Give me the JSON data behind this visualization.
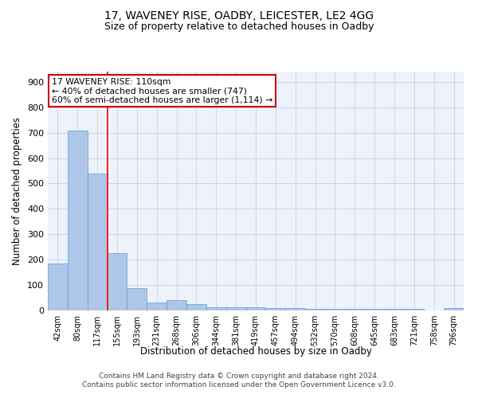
{
  "title1": "17, WAVENEY RISE, OADBY, LEICESTER, LE2 4GG",
  "title2": "Size of property relative to detached houses in Oadby",
  "xlabel": "Distribution of detached houses by size in Oadby",
  "ylabel": "Number of detached properties",
  "categories": [
    "42sqm",
    "80sqm",
    "117sqm",
    "155sqm",
    "193sqm",
    "231sqm",
    "268sqm",
    "306sqm",
    "344sqm",
    "381sqm",
    "419sqm",
    "457sqm",
    "494sqm",
    "532sqm",
    "570sqm",
    "608sqm",
    "645sqm",
    "683sqm",
    "721sqm",
    "758sqm",
    "796sqm"
  ],
  "values": [
    185,
    707,
    540,
    225,
    88,
    30,
    40,
    25,
    14,
    14,
    12,
    9,
    8,
    7,
    7,
    7,
    7,
    7,
    7,
    1,
    9
  ],
  "bar_color": "#aec6e8",
  "bar_edge_color": "#5a9fd4",
  "red_line_x": 2.5,
  "annotation_text_line1": "17 WAVENEY RISE: 110sqm",
  "annotation_text_line2": "← 40% of detached houses are smaller (747)",
  "annotation_text_line3": "60% of semi-detached houses are larger (1,114) →",
  "annotation_box_color": "#ffffff",
  "annotation_box_edge": "#cc0000",
  "ylim": [
    0,
    940
  ],
  "background_color": "#eef2fb",
  "footer_line1": "Contains HM Land Registry data © Crown copyright and database right 2024.",
  "footer_line2": "Contains public sector information licensed under the Open Government Licence v3.0."
}
